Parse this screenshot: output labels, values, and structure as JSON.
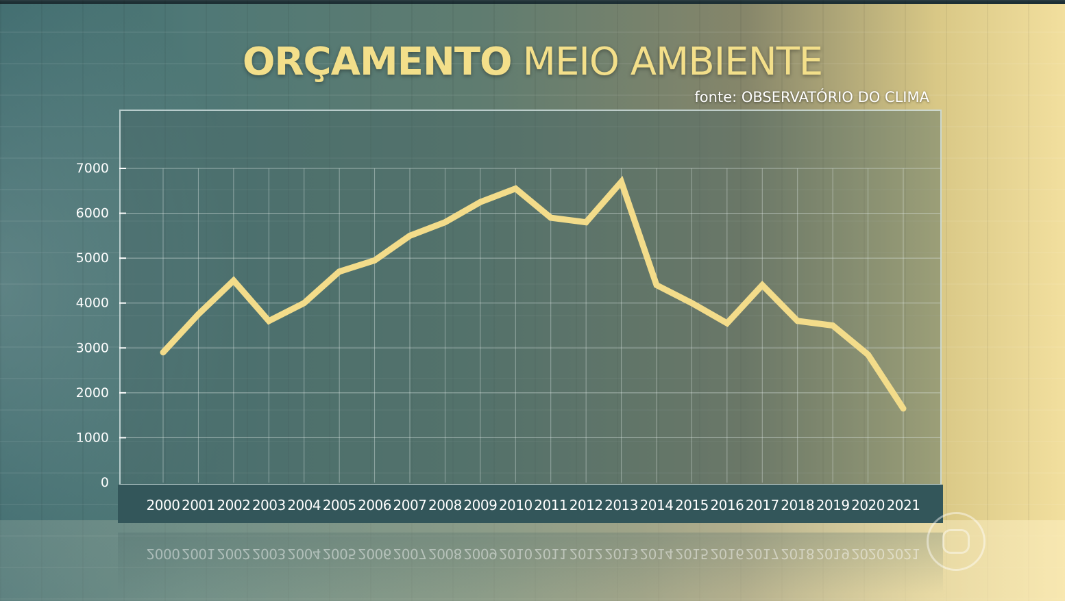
{
  "header": {
    "title_bold": "ORÇAMENTO",
    "title_regular": "MEIO AMBIENTE",
    "source": "fonte: OBSERVATÓRIO DO CLIMA"
  },
  "colors": {
    "line": "#f3dc8a",
    "title": "#f3df8a",
    "grid": "#dfe8e6",
    "axis_band": "#33565a"
  },
  "chart_data": {
    "type": "line",
    "title": "ORÇAMENTO MEIO AMBIENTE",
    "xlabel": "",
    "ylabel": "",
    "ylim": [
      0,
      7000
    ],
    "yticks": [
      0,
      1000,
      2000,
      3000,
      4000,
      5000,
      6000,
      7000
    ],
    "grid": true,
    "categories": [
      "2000",
      "2001",
      "2002",
      "2003",
      "2004",
      "2005",
      "2006",
      "2007",
      "2008",
      "2009",
      "2010",
      "2011",
      "2012",
      "2013",
      "2014",
      "2015",
      "2016",
      "2017",
      "2018",
      "2019",
      "2020",
      "2021"
    ],
    "series": [
      {
        "values": [
          2900,
          3750,
          4500,
          3600,
          4000,
          4700,
          4950,
          5500,
          5800,
          6250,
          6550,
          5900,
          5800,
          6700,
          4400,
          4000,
          3550,
          4400,
          3600,
          3500,
          2850,
          1650
        ]
      }
    ]
  }
}
